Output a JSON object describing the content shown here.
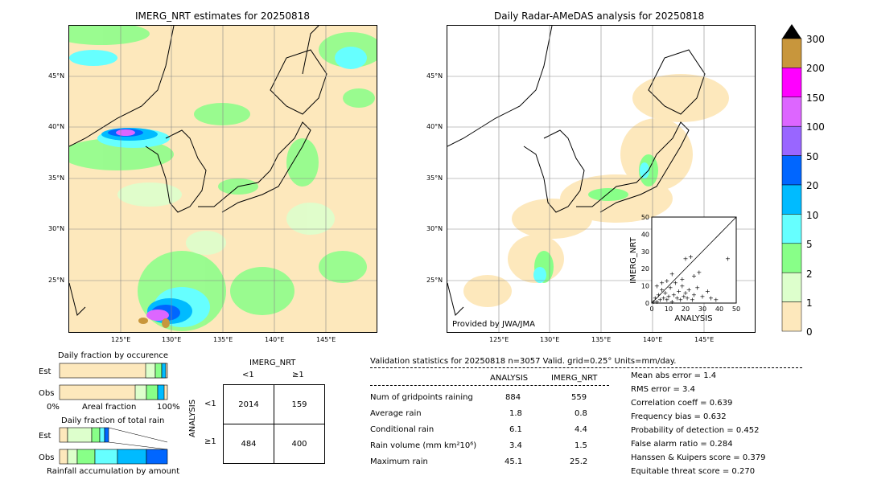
{
  "left_map": {
    "title": "IMERG_NRT estimates for 20250818",
    "lat_ticks": [
      "45°N",
      "40°N",
      "35°N",
      "30°N",
      "25°N"
    ],
    "lon_ticks": [
      "125°E",
      "130°E",
      "135°E",
      "140°E",
      "145°E"
    ]
  },
  "right_map": {
    "title": "Daily Radar-AMeDAS analysis for 20250818",
    "lat_ticks": [
      "45°N",
      "40°N",
      "35°N",
      "30°N",
      "25°N"
    ],
    "lon_ticks": [
      "125°E",
      "130°E",
      "135°E",
      "140°E",
      "145°E"
    ],
    "credit": "Provided by JWA/JMA"
  },
  "colorbar": {
    "labels": [
      "300",
      "200",
      "150",
      "100",
      "50",
      "20",
      "10",
      "5",
      "2",
      "1",
      "0"
    ],
    "colors": [
      "#c8963c",
      "#ff00ff",
      "#dd66ff",
      "#9966ff",
      "#0066ff",
      "#00bbff",
      "#66ffff",
      "#88ff88",
      "#ddffcc",
      "#fde8bc"
    ]
  },
  "chart_data": [
    {
      "type": "scatter",
      "title": "",
      "xlabel": "ANALYSIS",
      "ylabel": "IMERG_NRT",
      "xlim": [
        0,
        50
      ],
      "ylim": [
        0,
        50
      ],
      "ticks": [
        "0",
        "10",
        "20",
        "30",
        "40",
        "50"
      ],
      "points": [
        [
          1,
          1
        ],
        [
          2,
          3
        ],
        [
          3,
          1
        ],
        [
          4,
          5
        ],
        [
          5,
          2
        ],
        [
          6,
          8
        ],
        [
          7,
          3
        ],
        [
          8,
          6
        ],
        [
          9,
          2
        ],
        [
          10,
          4
        ],
        [
          11,
          9
        ],
        [
          12,
          1
        ],
        [
          13,
          5
        ],
        [
          14,
          12
        ],
        [
          15,
          3
        ],
        [
          16,
          7
        ],
        [
          17,
          2
        ],
        [
          18,
          10
        ],
        [
          19,
          4
        ],
        [
          20,
          6
        ],
        [
          21,
          3
        ],
        [
          22,
          8
        ],
        [
          24,
          2
        ],
        [
          25,
          5
        ],
        [
          27,
          9
        ],
        [
          30,
          4
        ],
        [
          33,
          7
        ],
        [
          35,
          3
        ],
        [
          38,
          2
        ],
        [
          45,
          26
        ],
        [
          20,
          26
        ],
        [
          23,
          27
        ],
        [
          25,
          16
        ],
        [
          18,
          14
        ],
        [
          12,
          17
        ],
        [
          9,
          13
        ],
        [
          6,
          12
        ],
        [
          3,
          10
        ],
        [
          28,
          18
        ]
      ]
    },
    {
      "type": "bar",
      "title": "Daily fraction by occurence",
      "categories": [
        "Est",
        "Obs"
      ],
      "xlabels": [
        "0%",
        "Areal fraction",
        "100%"
      ]
    },
    {
      "type": "bar",
      "title": "Daily fraction of total rain",
      "categories": [
        "Est",
        "Obs"
      ],
      "xlabel": "Rainfall accumulation by amount"
    }
  ],
  "contingency": {
    "header": "IMERG_NRT",
    "col_labels": [
      "<1",
      "≥1"
    ],
    "row_title": "ANALYSIS",
    "row_labels": [
      "<1",
      "≥1"
    ],
    "cells": [
      [
        "2014",
        "159"
      ],
      [
        "484",
        "400"
      ]
    ]
  },
  "validation": {
    "header": "Validation statistics for 20250818  n=3057 Valid. grid=0.25° Units=mm/day.",
    "col_a": "ANALYSIS",
    "col_b": "IMERG_NRT",
    "rows": [
      {
        "label": "Num of gridpoints raining",
        "a": "884",
        "b": "559"
      },
      {
        "label": "Average rain",
        "a": "1.8",
        "b": "0.8"
      },
      {
        "label": "Conditional rain",
        "a": "6.1",
        "b": "4.4"
      },
      {
        "label": "Rain volume (mm km²10⁶)",
        "a": "3.4",
        "b": "1.5"
      },
      {
        "label": "Maximum rain",
        "a": "45.1",
        "b": "25.2"
      }
    ],
    "scores": [
      "Mean abs error =    1.4",
      "RMS error =    3.4",
      "Correlation coeff =  0.639",
      "Frequency bias =  0.632",
      "Probability of detection =  0.452",
      "False alarm ratio =  0.284",
      "Hanssen & Kuipers score =  0.379",
      "Equitable threat score =  0.270"
    ]
  }
}
